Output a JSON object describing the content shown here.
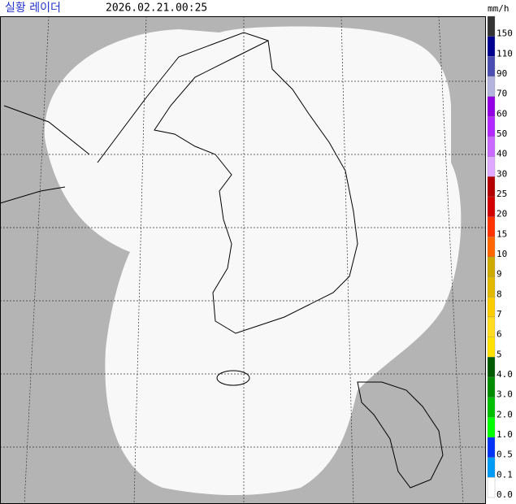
{
  "header": {
    "title": "실황 레이더",
    "time": "2026.02.21.00:25",
    "unit": "mm/h"
  },
  "legend": [
    {
      "label": "150",
      "color": "#333333"
    },
    {
      "label": "110",
      "color": "#000390"
    },
    {
      "label": "90",
      "color": "#4c4eb1"
    },
    {
      "label": "70",
      "color": "#b3b4de"
    },
    {
      "label": "60",
      "color": "#9300e4"
    },
    {
      "label": "50",
      "color": "#b329ff"
    },
    {
      "label": "40",
      "color": "#c969ff"
    },
    {
      "label": "30",
      "color": "#e0a9ff"
    },
    {
      "label": "25",
      "color": "#b40000"
    },
    {
      "label": "20",
      "color": "#d20000"
    },
    {
      "label": "15",
      "color": "#ff3200"
    },
    {
      "label": "10",
      "color": "#ff6600"
    },
    {
      "label": "9",
      "color": "#ccaa00"
    },
    {
      "label": "8",
      "color": "#e0b900"
    },
    {
      "label": "7",
      "color": "#f9cd00"
    },
    {
      "label": "6",
      "color": "#ffdc1f"
    },
    {
      "label": "5",
      "color": "#ffe100"
    },
    {
      "label": "4.0",
      "color": "#005a00"
    },
    {
      "label": "3.0",
      "color": "#008c00"
    },
    {
      "label": "2.0",
      "color": "#00be00"
    },
    {
      "label": "1.0",
      "color": "#00ff00"
    },
    {
      "label": "0.5",
      "color": "#0033f5"
    },
    {
      "label": "0.1",
      "color": "#009bf5"
    },
    {
      "label": "0.0",
      "color": "#ffffff"
    }
  ]
}
